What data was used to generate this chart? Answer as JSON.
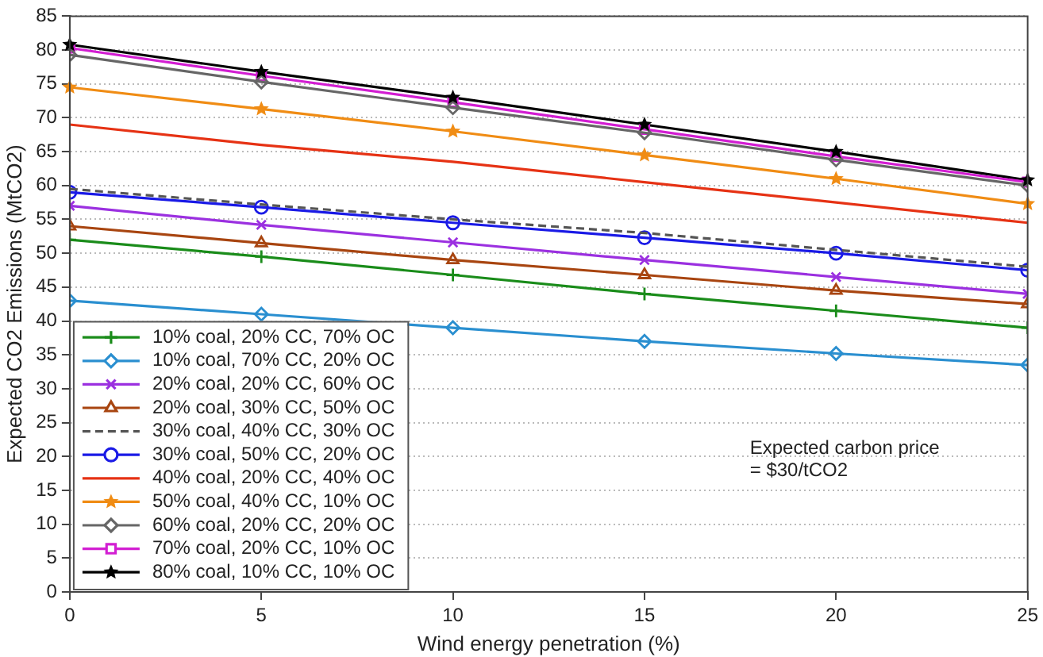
{
  "chart_data": {
    "type": "line",
    "xlabel": "Wind energy penetration (%)",
    "ylabel": "Expected CO2 Emissions (MtCO2)",
    "x": [
      0,
      5,
      10,
      15,
      20,
      25
    ],
    "xlim": [
      0,
      25
    ],
    "xticks": [
      0,
      5,
      10,
      15,
      20,
      25
    ],
    "ylim": [
      0,
      85
    ],
    "yticks": [
      0,
      5,
      10,
      15,
      20,
      25,
      30,
      35,
      40,
      45,
      50,
      55,
      60,
      65,
      70,
      75,
      80,
      85
    ],
    "grid": "y",
    "legend": "bottom left",
    "annotations": [
      "Expected carbon price\n= $30/tCO2"
    ],
    "series": [
      {
        "name": "10% coal, 20% CC, 70% OC",
        "color": "#1a8c1a",
        "marker": "cross",
        "values": [
          52,
          49.5,
          46.8,
          44,
          41.5,
          39
        ]
      },
      {
        "name": "10% coal, 70% CC, 20% OC",
        "color": "#2a8fd0",
        "marker": "diamond",
        "values": [
          43,
          41,
          39,
          37,
          35.2,
          33.5
        ]
      },
      {
        "name": "20% coal, 20% CC, 60% OC",
        "color": "#9b30e0",
        "marker": "x",
        "values": [
          57,
          54.2,
          51.6,
          49,
          46.5,
          44
        ]
      },
      {
        "name": "20% coal, 30% CC, 50% OC",
        "color": "#a84510",
        "marker": "triangle",
        "values": [
          54,
          51.5,
          49,
          46.8,
          44.5,
          42.5
        ]
      },
      {
        "name": "30% coal, 40% CC, 30% OC",
        "color": "#555555",
        "marker": "none",
        "line_style": "dashed",
        "values": [
          59.5,
          57.2,
          55,
          53,
          50.5,
          48
        ]
      },
      {
        "name": "30% coal, 50% CC, 20% OC",
        "color": "#1a1ae6",
        "marker": "circle",
        "values": [
          59,
          56.8,
          54.5,
          52.3,
          50,
          47.5
        ]
      },
      {
        "name": "40% coal, 20% CC, 40% OC",
        "color": "#e63214",
        "marker": "none",
        "values": [
          69,
          66,
          63.5,
          60.5,
          57.5,
          54.5
        ]
      },
      {
        "name": "50% coal, 40% CC, 10% OC",
        "color": "#f08c14",
        "marker": "star",
        "values": [
          74.5,
          71.3,
          68,
          64.5,
          61,
          57.3
        ]
      },
      {
        "name": "60% coal, 20% CC, 20% OC",
        "color": "#666666",
        "marker": "diamond",
        "values": [
          79.3,
          75.3,
          71.5,
          67.8,
          63.8,
          60
        ]
      },
      {
        "name": "70% coal, 20% CC, 10% OC",
        "color": "#d21ed2",
        "marker": "square",
        "values": [
          80.3,
          76.2,
          72.3,
          68.3,
          64.3,
          60.5
        ]
      },
      {
        "name": "80% coal, 10% CC, 10% OC",
        "color": "#000000",
        "marker": "star",
        "values": [
          80.8,
          76.8,
          73,
          69,
          65,
          60.8
        ]
      }
    ]
  }
}
